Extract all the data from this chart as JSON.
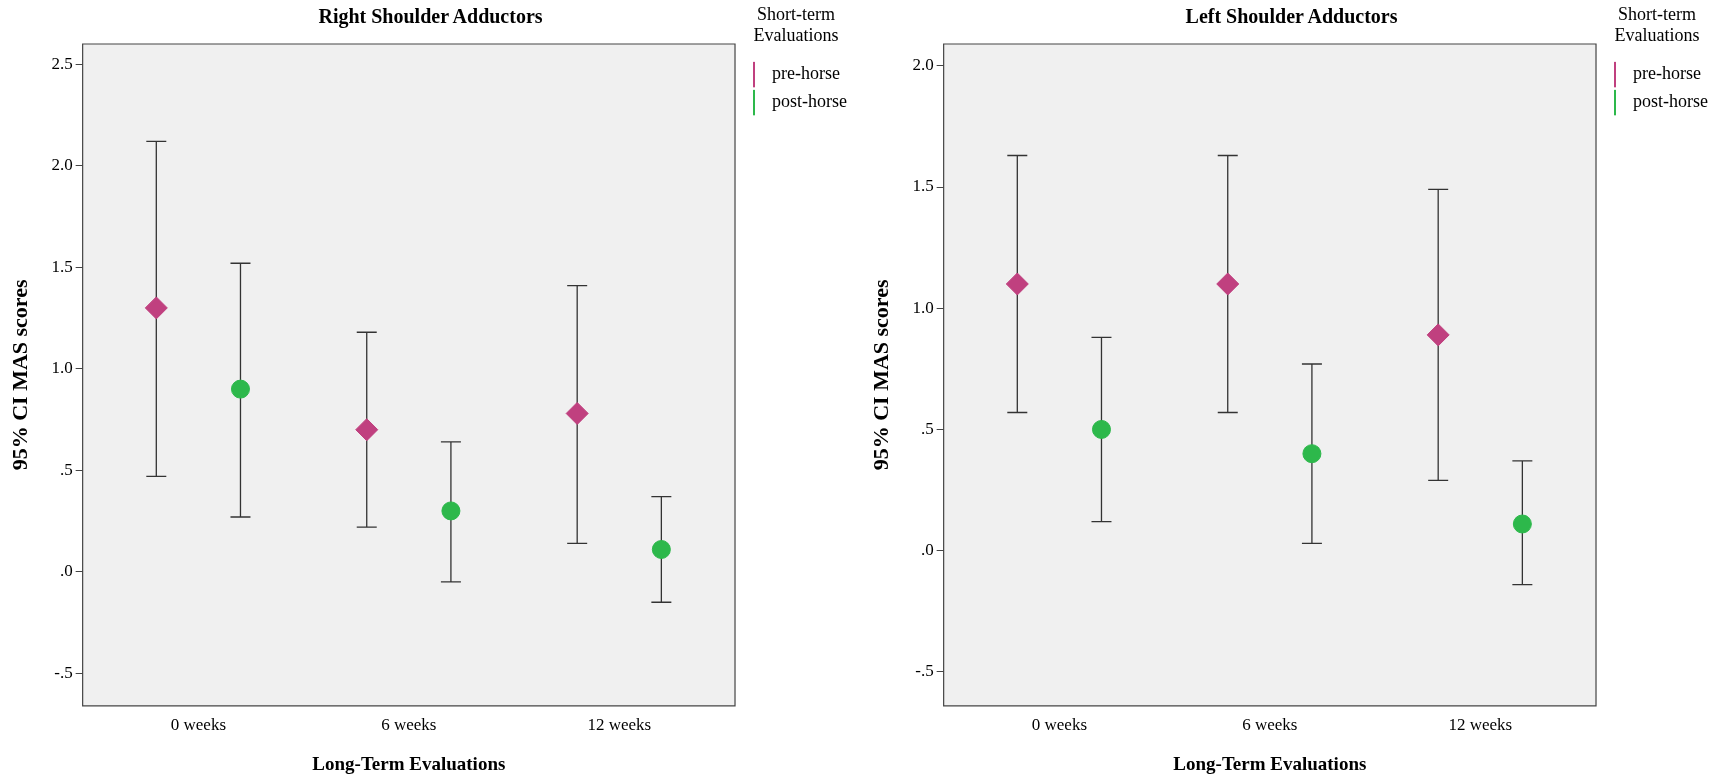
{
  "chart_data": [
    {
      "type": "scatter",
      "title": "Right Shoulder Adductors",
      "xlabel": "Long-Term Evaluations",
      "ylabel": "95% CI MAS scores",
      "legend_title": "Short-term Evaluations",
      "legend": "top right",
      "grid": false,
      "categories": [
        "0 weeks",
        "6 weeks",
        "12 weeks"
      ],
      "ylim": [
        -0.66,
        2.6
      ],
      "yticks": [
        {
          "value": -0.5,
          "label": "-.5"
        },
        {
          "value": 0,
          "label": ".0"
        },
        {
          "value": 0.5,
          "label": ".5"
        },
        {
          "value": 1,
          "label": "1.0"
        },
        {
          "value": 1.5,
          "label": "1.5"
        },
        {
          "value": 2,
          "label": "2.0"
        },
        {
          "value": 2.5,
          "label": "2.5"
        }
      ],
      "series": [
        {
          "name": "pre-horse",
          "color": "#c0407f",
          "marker": "diamond",
          "values": [
            1.3,
            0.7,
            0.78
          ],
          "errors": [
            [
              0.47,
              2.12
            ],
            [
              0.22,
              1.18
            ],
            [
              0.14,
              1.41
            ]
          ]
        },
        {
          "name": "post-horse",
          "color": "#2db84b",
          "marker": "circle",
          "values": [
            0.9,
            0.3,
            0.11
          ],
          "errors": [
            [
              0.27,
              1.52
            ],
            [
              -0.05,
              0.64
            ],
            [
              -0.15,
              0.37
            ]
          ]
        }
      ]
    },
    {
      "type": "scatter",
      "title": "Left Shoulder Adductors",
      "xlabel": "Long-Term Evaluations",
      "ylabel": "95% CI MAS scores",
      "legend_title": "Short-term Evaluations",
      "legend": "top right",
      "grid": false,
      "categories": [
        "0 weeks",
        "6 weeks",
        "12 weeks"
      ],
      "ylim": [
        -0.64,
        2.09
      ],
      "yticks": [
        {
          "value": -0.5,
          "label": "-.5"
        },
        {
          "value": 0,
          "label": ".0"
        },
        {
          "value": 0.5,
          "label": ".5"
        },
        {
          "value": 1,
          "label": "1.0"
        },
        {
          "value": 1.5,
          "label": "1.5"
        },
        {
          "value": 2,
          "label": "2.0"
        }
      ],
      "series": [
        {
          "name": "pre-horse",
          "color": "#c0407f",
          "marker": "diamond",
          "values": [
            1.1,
            1.1,
            0.89
          ],
          "errors": [
            [
              0.57,
              1.63
            ],
            [
              0.57,
              1.63
            ],
            [
              0.29,
              1.49
            ]
          ]
        },
        {
          "name": "post-horse",
          "color": "#2db84b",
          "marker": "circle",
          "values": [
            0.5,
            0.4,
            0.11
          ],
          "errors": [
            [
              0.12,
              0.88
            ],
            [
              0.03,
              0.77
            ],
            [
              -0.14,
              0.37
            ]
          ]
        }
      ]
    }
  ]
}
